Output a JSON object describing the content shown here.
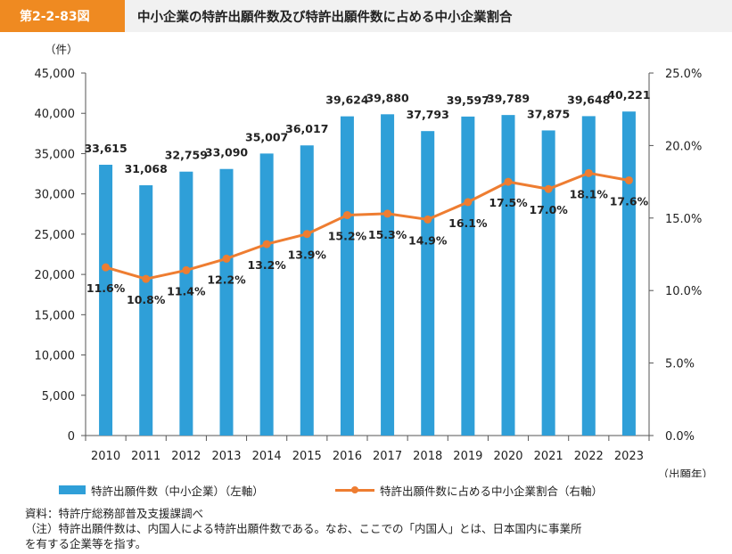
{
  "header": {
    "figure_label": "第2-2-83図",
    "title": "中小企業の特許出願件数及び特許出願件数に占める中小企業割合"
  },
  "legend": {
    "bar_label": "特許出願件数（中小企業）（左軸）",
    "line_label": "特許出願件数に占める中小企業割合（右軸）"
  },
  "notes": {
    "source": "資料：特許庁総務部普及支援課調べ",
    "note_line1": "（注）特許出願件数は、内国人による特許出願件数である。なお、ここでの「内国人」とは、日本国内に事業所",
    "note_line2": "を有する企業等を指す。"
  },
  "colors": {
    "bar": "#2f9fd8",
    "line": "#ee7d31",
    "axis": "#555555"
  },
  "chart_data": {
    "type": "bar+line",
    "categories": [
      "2010",
      "2011",
      "2012",
      "2013",
      "2014",
      "2015",
      "2016",
      "2017",
      "2018",
      "2019",
      "2020",
      "2021",
      "2022",
      "2023"
    ],
    "series": [
      {
        "name": "特許出願件数（中小企業）（左軸）",
        "type": "bar",
        "axis": "left",
        "values": [
          33615,
          31068,
          32759,
          33090,
          35007,
          36017,
          39624,
          39880,
          37793,
          39597,
          39789,
          37875,
          39648,
          40221
        ],
        "labels": [
          "33,615",
          "31,068",
          "32,759",
          "33,090",
          "35,007",
          "36,017",
          "39,624",
          "39,880",
          "37,793",
          "39,597",
          "39,789",
          "37,875",
          "39,648",
          "40,221"
        ]
      },
      {
        "name": "特許出願件数に占める中小企業割合（右軸）",
        "type": "line",
        "axis": "right",
        "values": [
          11.6,
          10.8,
          11.4,
          12.2,
          13.2,
          13.9,
          15.2,
          15.3,
          14.9,
          16.1,
          17.5,
          17.0,
          18.1,
          17.6
        ],
        "labels": [
          "11.6%",
          "10.8%",
          "11.4%",
          "12.2%",
          "13.2%",
          "13.9%",
          "15.2%",
          "15.3%",
          "14.9%",
          "16.1%",
          "17.5%",
          "17.0%",
          "18.1%",
          "17.6%"
        ]
      }
    ],
    "y_left": {
      "unit_label": "（件）",
      "ylim": [
        0,
        45000
      ],
      "ticks": [
        0,
        5000,
        10000,
        15000,
        20000,
        25000,
        30000,
        35000,
        40000,
        45000
      ],
      "tick_labels": [
        "0",
        "5,000",
        "10,000",
        "15,000",
        "20,000",
        "25,000",
        "30,000",
        "35,000",
        "40,000",
        "45,000"
      ]
    },
    "y_right": {
      "ylim": [
        0,
        25
      ],
      "ticks": [
        0,
        5,
        10,
        15,
        20,
        25
      ],
      "tick_labels": [
        "0.0%",
        "5.0%",
        "10.0%",
        "15.0%",
        "20.0%",
        "25.0%"
      ]
    },
    "xlabel": "（出願年）",
    "grid": false
  }
}
